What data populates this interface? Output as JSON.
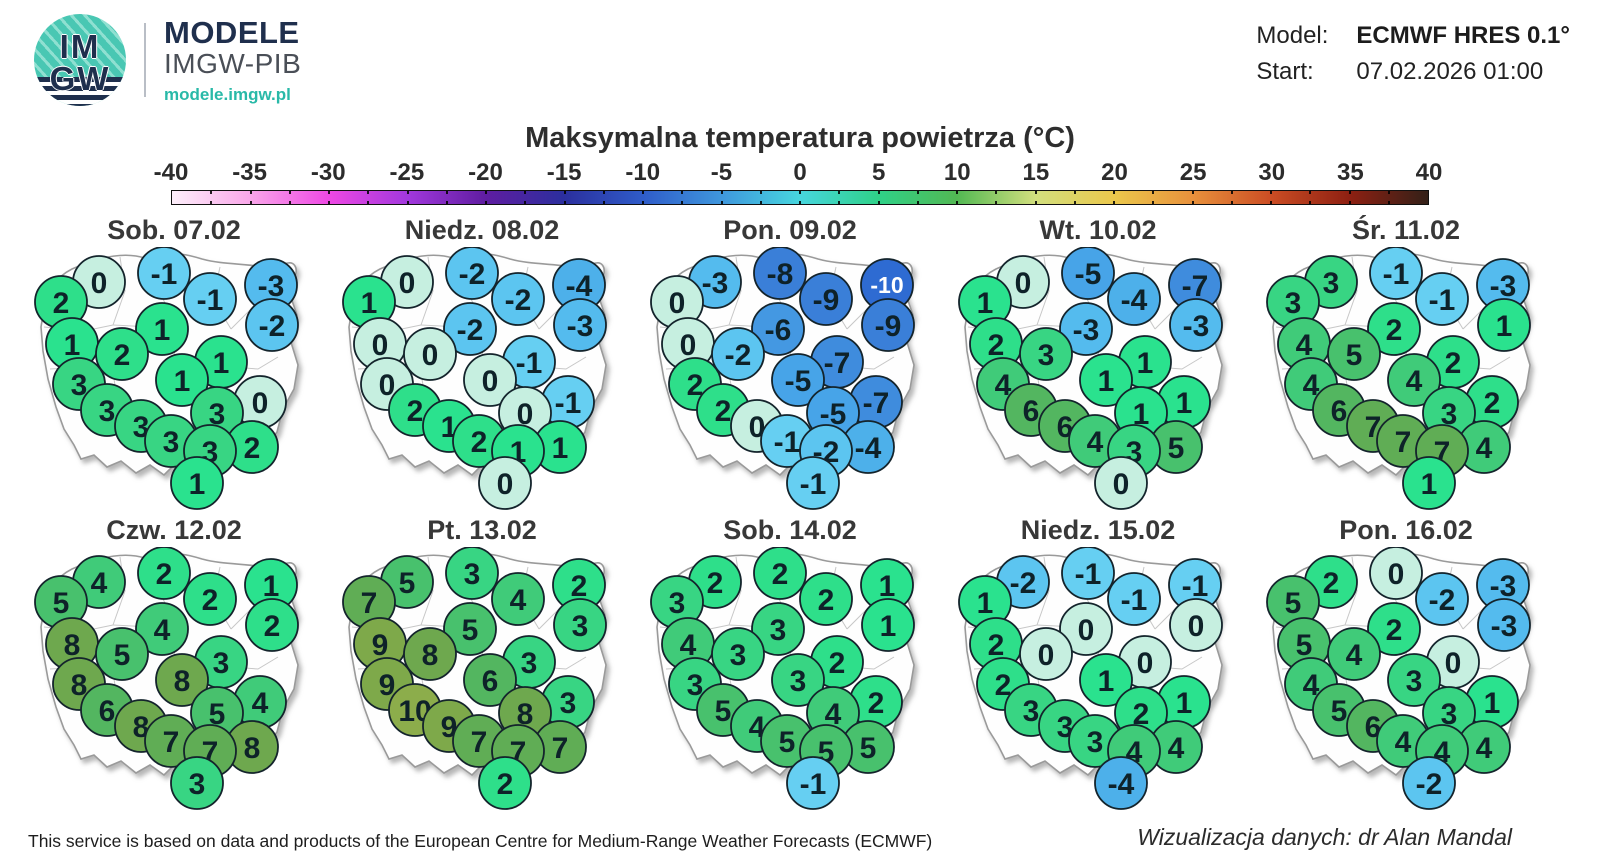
{
  "header": {
    "logo": {
      "top": "IM",
      "bottom": "GW",
      "brand": "MODELE",
      "org": "IMGW-PIB",
      "url": "modele.imgw.pl"
    },
    "model_label": "Model:",
    "model_value": "ECMWF HRES 0.1°",
    "start_label": "Start:",
    "start_value": "07.02.2026 01:00"
  },
  "title": "Maksymalna temperatura powietrza (°C)",
  "colorbar": {
    "min": -40,
    "max": 40,
    "tick_step": 5,
    "tick_labels": [
      "-40",
      "-35",
      "-30",
      "-25",
      "-20",
      "-15",
      "-10",
      "-5",
      "0",
      "5",
      "10",
      "15",
      "20",
      "25",
      "30",
      "35",
      "40"
    ],
    "gradient": [
      [
        -40,
        "#fdeffa"
      ],
      [
        -35,
        "#f9a6e9"
      ],
      [
        -30,
        "#ee48e4"
      ],
      [
        -25,
        "#a238dd"
      ],
      [
        -20,
        "#5f1da1"
      ],
      [
        -15,
        "#2b2f9e"
      ],
      [
        -10,
        "#2f5cc9"
      ],
      [
        -5,
        "#3f97dd"
      ],
      [
        0,
        "#47d6de"
      ],
      [
        5,
        "#2fd188"
      ],
      [
        10,
        "#52b853"
      ],
      [
        15,
        "#d2df7e"
      ],
      [
        20,
        "#ebc84c"
      ],
      [
        25,
        "#e8913c"
      ],
      [
        30,
        "#cb4d24"
      ],
      [
        35,
        "#8e2012"
      ],
      [
        40,
        "#332018"
      ]
    ]
  },
  "colors": {
    "circle_stroke": "#14242c",
    "text_dark": "#0e2229",
    "text_light": "#ffffff",
    "values": {
      "-10": "#2e6bd2",
      "-9": "#3a7fd8",
      "-8": "#3a7fd8",
      "-7": "#3f8cdd",
      "-6": "#4498e2",
      "-5": "#47a4e8",
      "-4": "#4db0ea",
      "-3": "#54bbee",
      "-2": "#5cc5f0",
      "-1": "#66cff2",
      "0": "#c6efe0",
      "1": "#2ae28e",
      "2": "#2edf8a",
      "3": "#38d583",
      "4": "#40cb79",
      "5": "#48c16d",
      "6": "#53b660",
      "7": "#60ad55",
      "8": "#6ea84e",
      "9": "#7ea94a",
      "10": "#8cad4b"
    }
  },
  "chart_data": {
    "type": "heatmap",
    "title": "Maksymalna temperatura powietrza (°C)",
    "unit": "°C",
    "model": "ECMWF HRES 0.1°",
    "start": "07.02.2026 01:00",
    "scale_range": [
      -40,
      40
    ],
    "scale_step": 5,
    "stations": [
      [
        75,
        35
      ],
      [
        140,
        26
      ],
      [
        247,
        38
      ],
      [
        186,
        52
      ],
      [
        37,
        55
      ],
      [
        248,
        78
      ],
      [
        138,
        82
      ],
      [
        48,
        97
      ],
      [
        98,
        107
      ],
      [
        197,
        115
      ],
      [
        158,
        133
      ],
      [
        55,
        137
      ],
      [
        236,
        155
      ],
      [
        83,
        163
      ],
      [
        193,
        166
      ],
      [
        117,
        179
      ],
      [
        147,
        194
      ],
      [
        228,
        200
      ],
      [
        186,
        204
      ],
      [
        173,
        236
      ]
    ],
    "series": [
      {
        "name": "Sob. 07.02",
        "values": [
          0,
          -1,
          -3,
          -1,
          2,
          -2,
          1,
          1,
          2,
          1,
          1,
          3,
          0,
          3,
          3,
          3,
          3,
          2,
          3,
          1
        ]
      },
      {
        "name": "Niedz. 08.02",
        "values": [
          0,
          -2,
          -4,
          -2,
          1,
          -3,
          -2,
          0,
          0,
          -1,
          0,
          0,
          -1,
          2,
          0,
          1,
          2,
          1,
          1,
          0
        ]
      },
      {
        "name": "Pon. 09.02",
        "values": [
          -3,
          -8,
          -10,
          -9,
          0,
          -9,
          -6,
          0,
          -2,
          -7,
          -5,
          2,
          -7,
          2,
          -5,
          0,
          -1,
          -4,
          -2,
          -1
        ]
      },
      {
        "name": "Wt. 10.02",
        "values": [
          0,
          -5,
          -7,
          -4,
          1,
          -3,
          -3,
          2,
          3,
          1,
          1,
          4,
          1,
          6,
          1,
          6,
          4,
          5,
          3,
          0
        ]
      },
      {
        "name": "Śr. 11.02",
        "values": [
          3,
          -1,
          -3,
          -1,
          3,
          1,
          2,
          4,
          5,
          2,
          4,
          4,
          2,
          6,
          3,
          7,
          7,
          4,
          7,
          1
        ]
      },
      {
        "name": "Czw. 12.02",
        "values": [
          4,
          2,
          1,
          2,
          5,
          2,
          4,
          8,
          5,
          3,
          8,
          8,
          4,
          6,
          5,
          8,
          7,
          8,
          7,
          3
        ]
      },
      {
        "name": "Pt. 13.02",
        "values": [
          5,
          3,
          2,
          4,
          7,
          3,
          5,
          9,
          8,
          3,
          6,
          9,
          3,
          10,
          8,
          9,
          7,
          7,
          7,
          2
        ]
      },
      {
        "name": "Sob. 14.02",
        "values": [
          2,
          2,
          1,
          2,
          3,
          1,
          3,
          4,
          3,
          2,
          3,
          3,
          2,
          5,
          4,
          4,
          5,
          5,
          5,
          -1
        ]
      },
      {
        "name": "Niedz. 15.02",
        "values": [
          -2,
          -1,
          -1,
          -1,
          1,
          0,
          0,
          2,
          0,
          0,
          1,
          2,
          1,
          3,
          2,
          3,
          3,
          4,
          4,
          -4
        ]
      },
      {
        "name": "Pon. 16.02",
        "values": [
          2,
          0,
          -3,
          -2,
          5,
          -3,
          2,
          5,
          4,
          0,
          3,
          4,
          1,
          5,
          3,
          6,
          4,
          4,
          4,
          -2
        ]
      }
    ]
  },
  "footer": {
    "attribution": "This service is based on data and products of the European Centre for Medium-Range Weather Forecasts (ECMWF)",
    "credit": "Wizualizacja danych: dr Alan Mandal"
  }
}
